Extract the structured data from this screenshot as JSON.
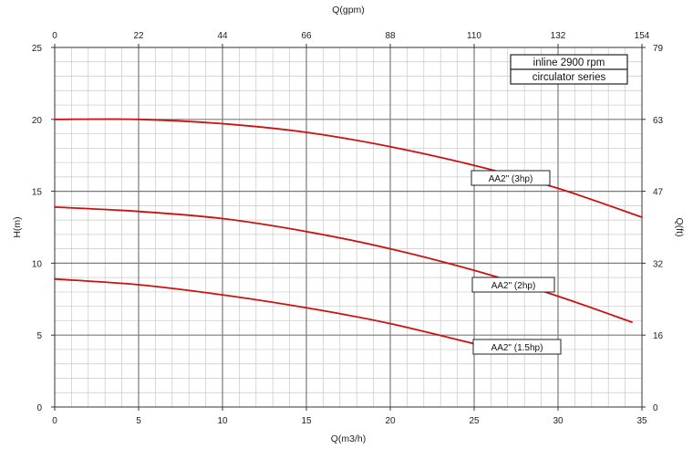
{
  "chart_data": {
    "type": "line",
    "title": "",
    "info_box": [
      "inline 2900 rpm",
      "circulator series"
    ],
    "xlabel": "Q(m3/h)",
    "ylabel": "H(m)",
    "x2label": "Q(gpm)",
    "y2label": "Q(ft)",
    "xlim": [
      0,
      35
    ],
    "ylim": [
      0,
      25
    ],
    "x_ticks": [
      "0",
      "5",
      "10",
      "15",
      "20",
      "25",
      "30",
      "35"
    ],
    "y_ticks": [
      "0",
      "5",
      "10",
      "15",
      "20",
      "25"
    ],
    "x2_ticks": [
      "0",
      "22",
      "44",
      "66",
      "88",
      "110",
      "132",
      "154"
    ],
    "y2_ticks": [
      "0",
      "16",
      "32",
      "47",
      "63",
      "79"
    ],
    "grid": true,
    "line_color": "#cc1111",
    "series": [
      {
        "name": "AA2\" (3hp)",
        "x": [
          0,
          5,
          10,
          15,
          20,
          25,
          30,
          35
        ],
        "y": [
          20.0,
          20.0,
          19.7,
          19.1,
          18.1,
          16.8,
          15.2,
          13.2
        ]
      },
      {
        "name": "AA2\" (2hp)",
        "x": [
          0,
          5,
          10,
          15,
          20,
          25,
          30,
          34.4
        ],
        "y": [
          13.9,
          13.6,
          13.1,
          12.2,
          11.0,
          9.5,
          7.7,
          5.9
        ]
      },
      {
        "name": "AA2\" (1.5hp)",
        "x": [
          0,
          5,
          10,
          15,
          20,
          25
        ],
        "y": [
          8.9,
          8.5,
          7.8,
          6.9,
          5.8,
          4.4
        ]
      }
    ]
  }
}
